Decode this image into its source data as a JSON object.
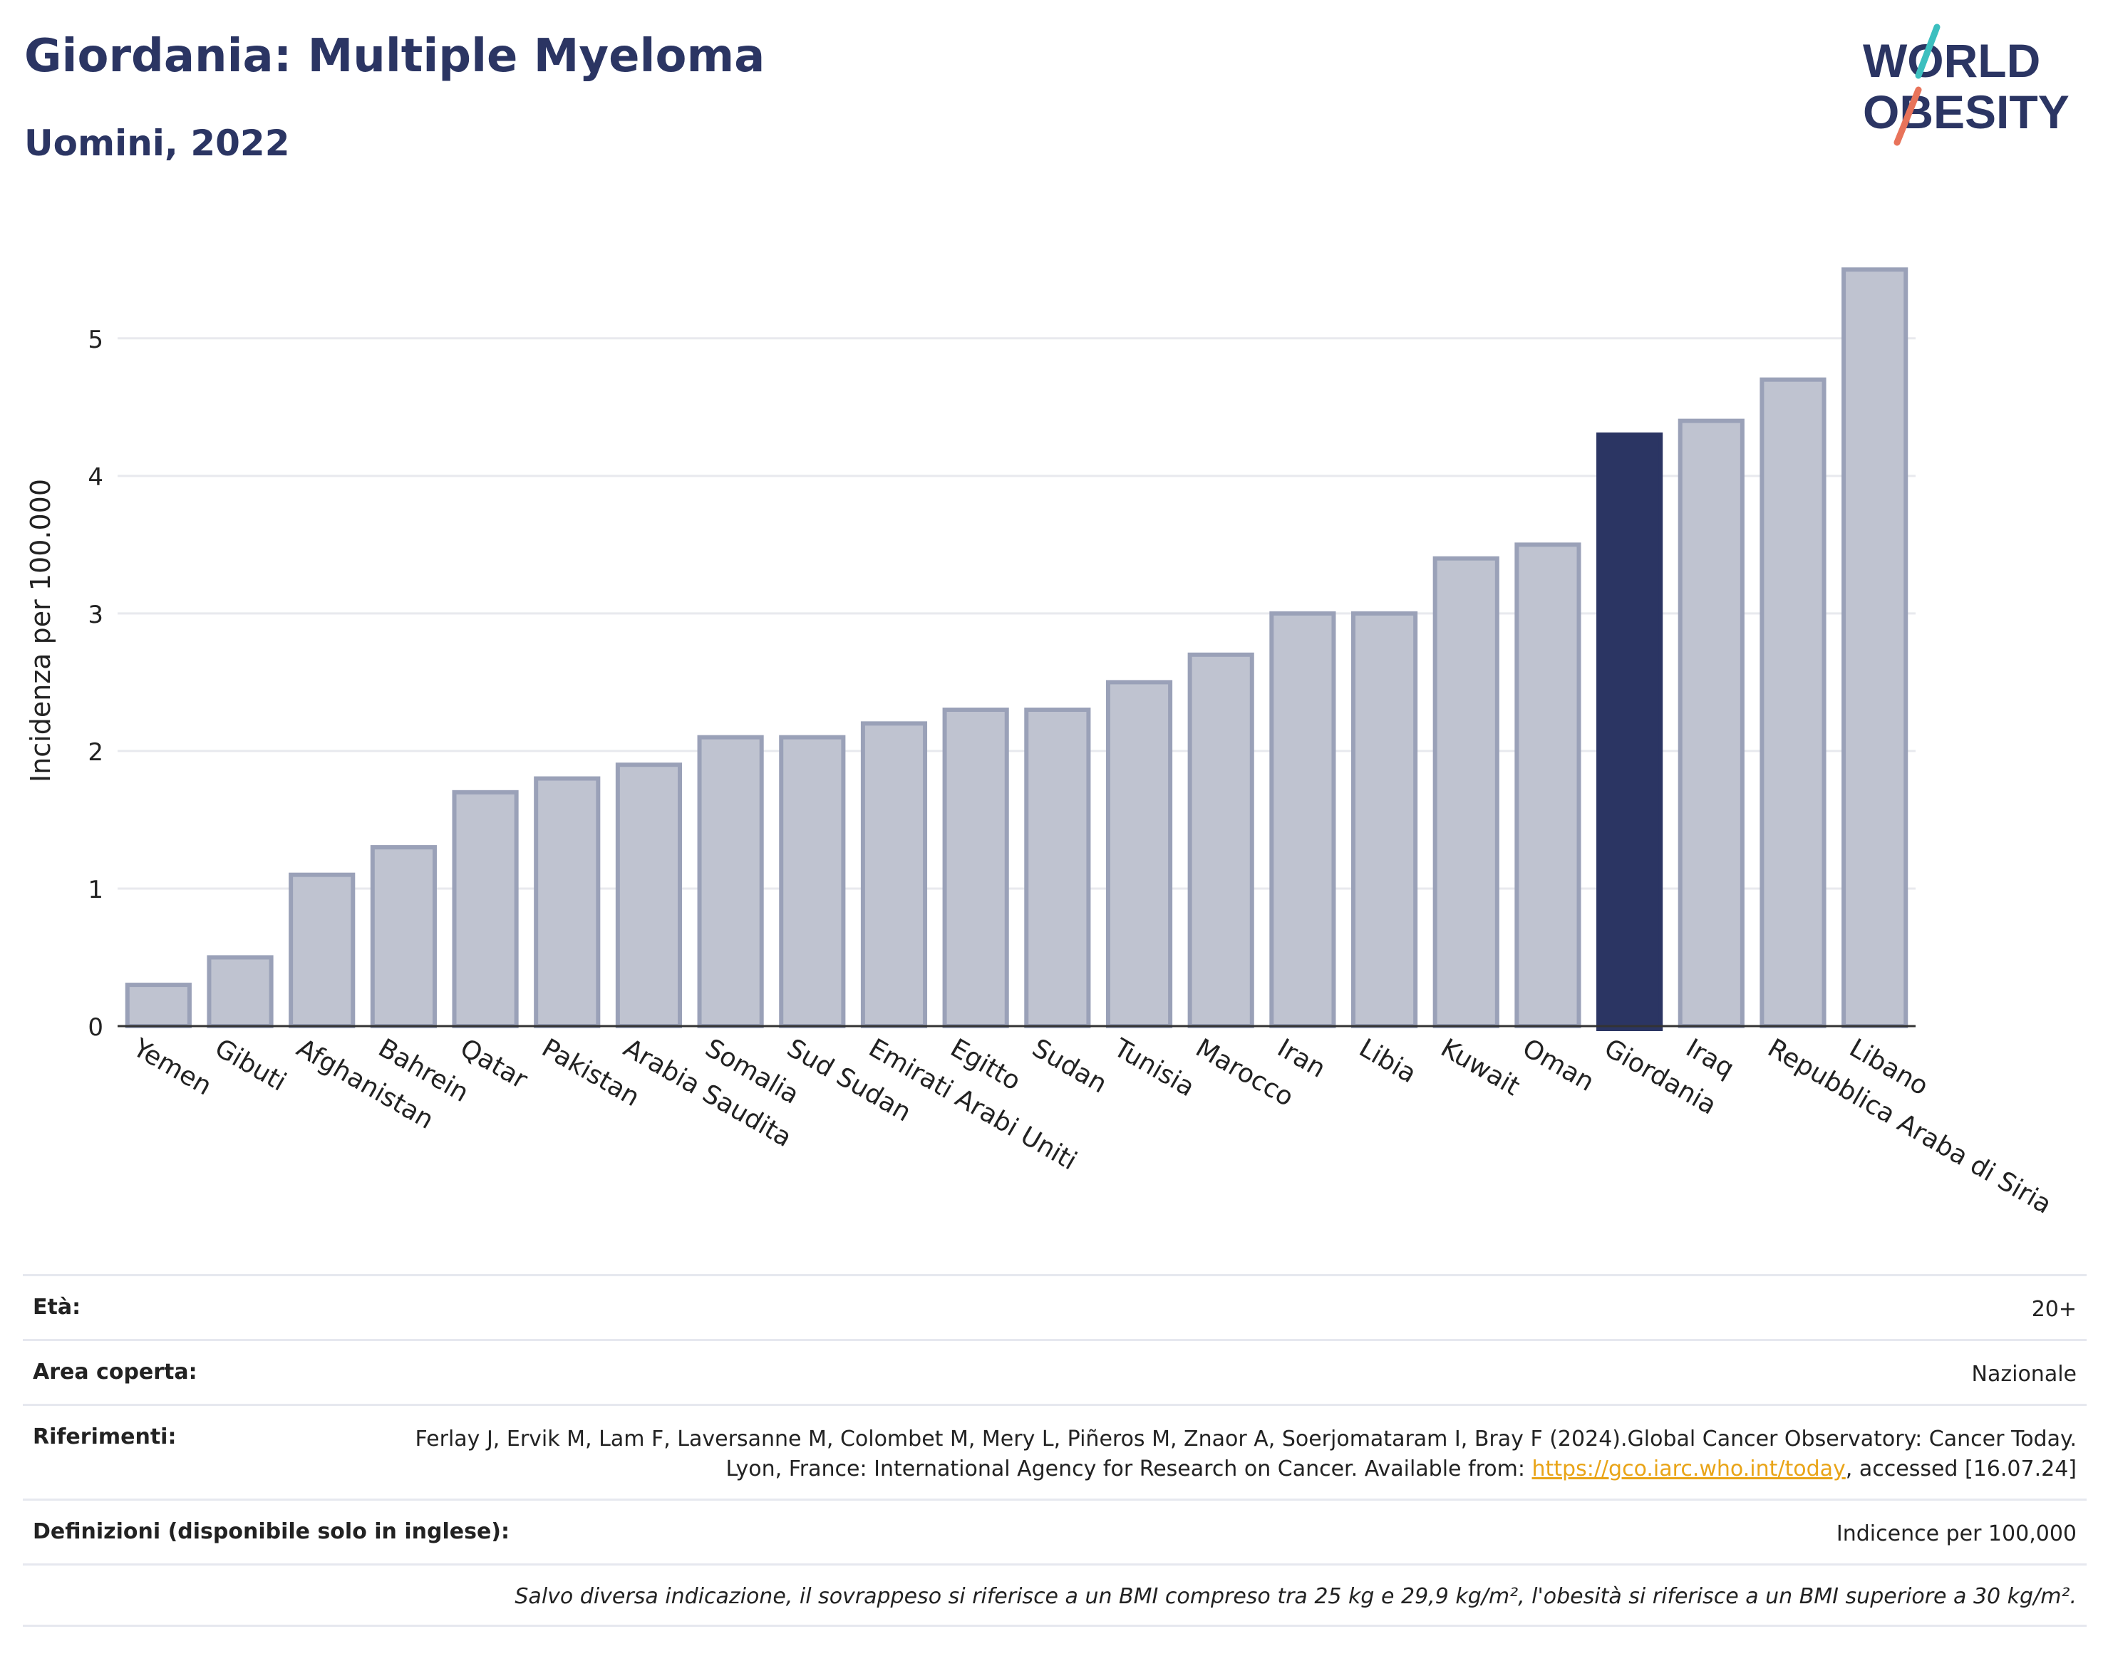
{
  "header": {
    "title": "Giordania: Multiple Myeloma",
    "subtitle": "Uomini, 2022"
  },
  "logo": {
    "line1": "WORLD",
    "line2": "OBESITY"
  },
  "chart_data": {
    "type": "bar",
    "categories": [
      "Yemen",
      "Gibuti",
      "Afghanistan",
      "Bahrein",
      "Qatar",
      "Pakistan",
      "Arabia Saudita",
      "Somalia",
      "Sud Sudan",
      "Emirati Arabi Uniti",
      "Egitto",
      "Sudan",
      "Tunisia",
      "Marocco",
      "Iran",
      "Libia",
      "Kuwait",
      "Oman",
      "Giordania",
      "Iraq",
      "Repubblica Araba di Siria",
      "Libano"
    ],
    "values": [
      0.3,
      0.5,
      1.1,
      1.3,
      1.7,
      1.8,
      1.9,
      2.1,
      2.1,
      2.2,
      2.3,
      2.3,
      2.5,
      2.7,
      3.0,
      3.0,
      3.4,
      3.5,
      4.3,
      4.4,
      4.7,
      5.5
    ],
    "highlight": "Giordania",
    "ylabel": "Incidenza per 100.000",
    "yticks": [
      0,
      1,
      2,
      3,
      4,
      5
    ],
    "ylim": [
      0,
      5.75
    ],
    "grid": true,
    "colors": {
      "bar": "#bfc3d0",
      "bar_border": "#9aa1b8",
      "highlight": "#2b3563",
      "grid": "#e8e9ee"
    }
  },
  "info": {
    "age_label": "Età:",
    "age_value": "20+",
    "area_label": "Area coperta:",
    "area_value": "Nazionale",
    "ref_label": "Riferimenti:",
    "ref_text": "Ferlay J, Ervik M, Lam F, Laversanne M, Colombet M, Mery L, Piñeros M, Znaor A, Soerjomataram I, Bray F (2024).Global Cancer Observatory: Cancer Today. Lyon, France: International Agency for Research on Cancer. Available from: ",
    "ref_link": "https://gco.iarc.who.int/today",
    "ref_tail": ", accessed [16.07.24]",
    "def_label": "Definizioni (disponibile solo in inglese):",
    "def_value": "Indicence per 100,000",
    "note": "Salvo diversa indicazione, il sovrappeso si riferisce a un BMI compreso tra 25 kg e 29,9 kg/m², l'obesità si riferisce a un BMI superiore a 30 kg/m²."
  }
}
